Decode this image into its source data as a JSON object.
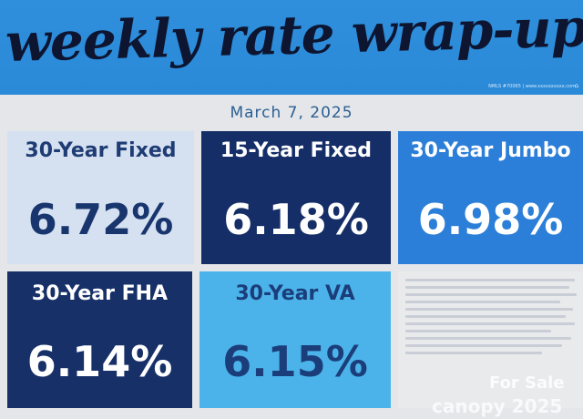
{
  "header": {
    "title": "weekly rate wrap-up",
    "nmls_text": "NMLS #70065 | www.xxxxxxxxxx.com",
    "icon": "equal-housing-icon"
  },
  "date": "March 7, 2025",
  "rates": [
    {
      "label": "30-Year Fixed",
      "value": "6.72%"
    },
    {
      "label": "15-Year Fixed",
      "value": "6.18%"
    },
    {
      "label": "30-Year Jumbo",
      "value": "6.98%"
    },
    {
      "label": "30-Year FHA",
      "value": "6.14%"
    },
    {
      "label": "30-Year VA",
      "value": "6.15%"
    }
  ],
  "watermark": {
    "line1": "For Sale",
    "line2": "canopy 2025"
  }
}
